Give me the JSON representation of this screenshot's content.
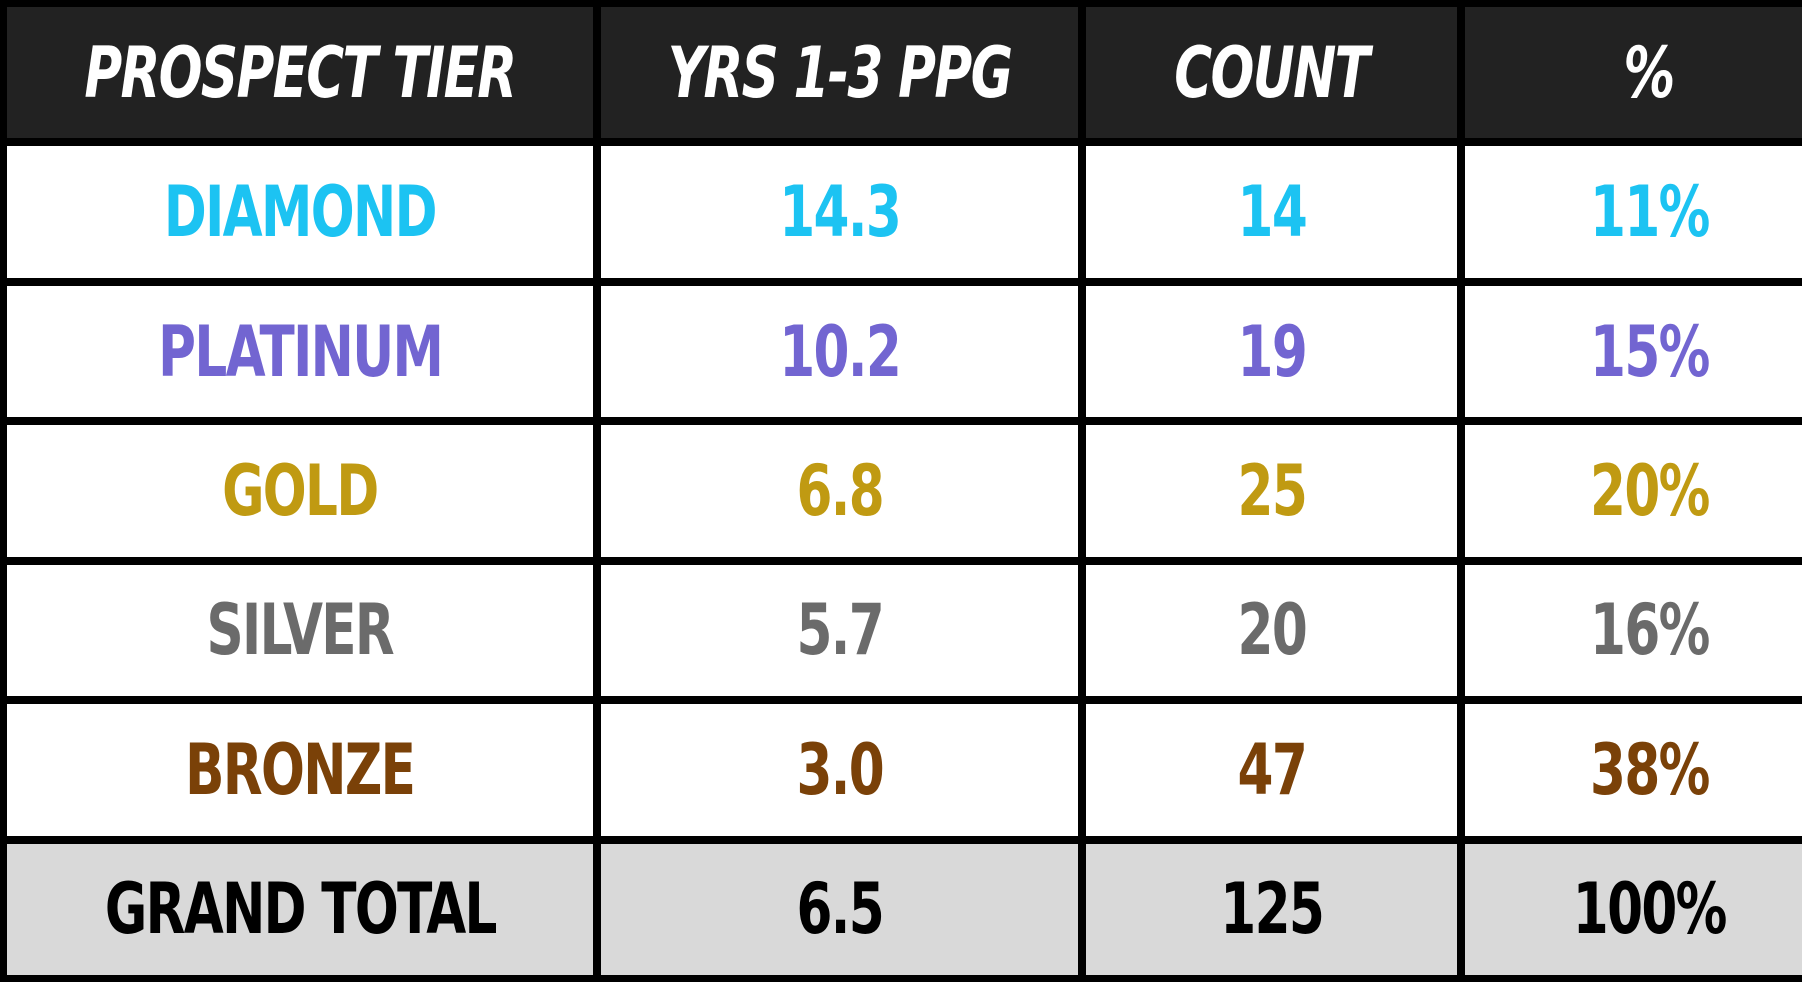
{
  "table": {
    "header": [
      "PROSPECT TIER",
      "YRS 1-3 PPG",
      "COUNT",
      "%"
    ],
    "rows": [
      {
        "cells": [
          "DIAMOND",
          "14.3",
          "14",
          "11%"
        ],
        "color": "#1cc3f2"
      },
      {
        "cells": [
          "PLATINUM",
          "10.2",
          "19",
          "15%"
        ],
        "color": "#7265d1"
      },
      {
        "cells": [
          "GOLD",
          "6.8",
          "25",
          "20%"
        ],
        "color": "#c09a12"
      },
      {
        "cells": [
          "SILVER",
          "5.7",
          "20",
          "16%"
        ],
        "color": "#6b6b6b"
      },
      {
        "cells": [
          "BRONZE",
          "3.0",
          "47",
          "38%"
        ],
        "color": "#7a4108"
      }
    ],
    "total": {
      "cells": [
        "GRAND TOTAL",
        "6.5",
        "125",
        "100%"
      ],
      "color": "#000000"
    }
  }
}
